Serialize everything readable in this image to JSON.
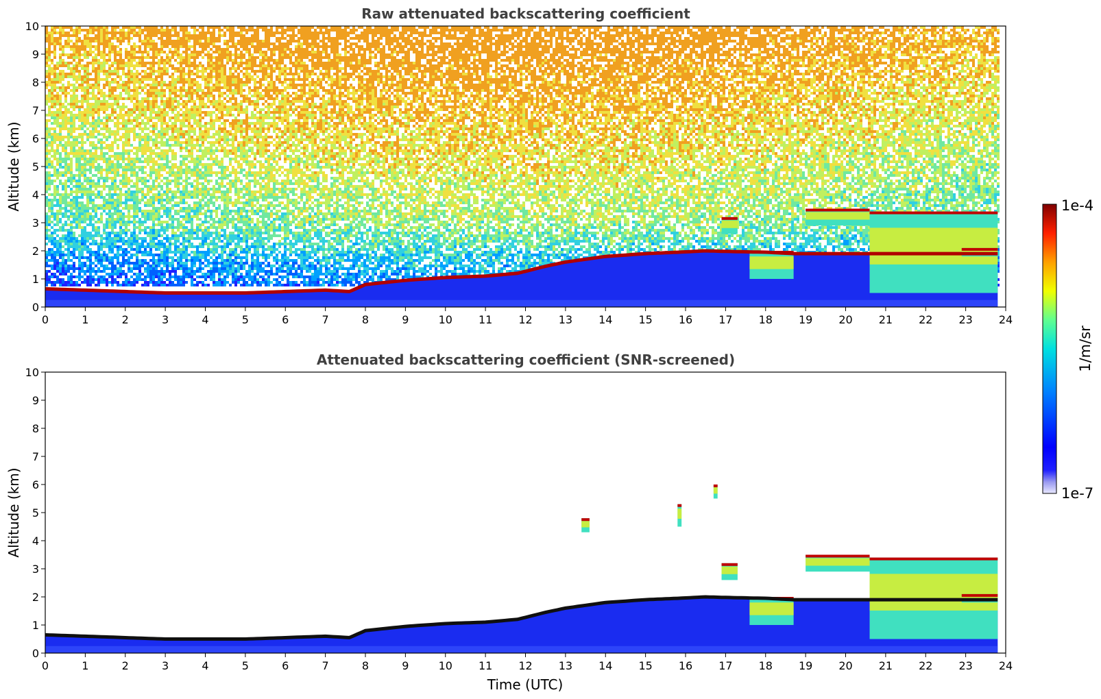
{
  "chart_data": [
    {
      "type": "heatmap",
      "title": "Raw attenuated backscattering coefficient",
      "xlabel": "",
      "ylabel": "Altitude (km)",
      "xlim": [
        0,
        24
      ],
      "ylim": [
        0,
        10
      ],
      "xticks": [
        "0",
        "1",
        "2",
        "3",
        "4",
        "5",
        "6",
        "7",
        "8",
        "9",
        "10",
        "11",
        "12",
        "13",
        "14",
        "15",
        "16",
        "17",
        "18",
        "19",
        "20",
        "21",
        "22",
        "23",
        "24"
      ],
      "yticks": [
        "0",
        "1",
        "2",
        "3",
        "4",
        "5",
        "6",
        "7",
        "8",
        "9",
        "10"
      ],
      "noise_background": true,
      "boundary_layer_top_km": {
        "t": [
          0,
          1,
          2,
          3,
          4,
          5,
          6,
          7,
          7.6,
          8,
          9,
          10,
          11,
          11.8,
          12.5,
          13,
          14,
          15,
          15.8,
          16.5,
          17,
          18,
          18.7
        ],
        "h": [
          0.65,
          0.6,
          0.55,
          0.5,
          0.5,
          0.5,
          0.55,
          0.6,
          0.55,
          0.8,
          0.95,
          1.05,
          1.1,
          1.2,
          1.45,
          1.6,
          1.8,
          1.9,
          1.95,
          2.0,
          1.98,
          1.95,
          1.9
        ]
      },
      "cloud_layers": [
        {
          "t0": 17.6,
          "t1": 18.7,
          "h0": 1.0,
          "h1": 2.0
        },
        {
          "t0": 16.9,
          "t1": 17.3,
          "h0": 2.6,
          "h1": 3.2
        },
        {
          "t0": 19.0,
          "t1": 20.6,
          "h0": 2.9,
          "h1": 3.5
        },
        {
          "t0": 20.6,
          "t1": 23.8,
          "h0": 0.5,
          "h1": 3.4
        },
        {
          "t0": 22.9,
          "t1": 23.8,
          "h0": 1.8,
          "h1": 2.1
        }
      ]
    },
    {
      "type": "heatmap",
      "title": "Attenuated backscattering coefficient (SNR-screened)",
      "xlabel": "Time (UTC)",
      "ylabel": "Altitude (km)",
      "xlim": [
        0,
        24
      ],
      "ylim": [
        0,
        10
      ],
      "xticks": [
        "0",
        "1",
        "2",
        "3",
        "4",
        "5",
        "6",
        "7",
        "8",
        "9",
        "10",
        "11",
        "12",
        "13",
        "14",
        "15",
        "16",
        "17",
        "18",
        "19",
        "20",
        "21",
        "22",
        "23",
        "24"
      ],
      "yticks": [
        "0",
        "1",
        "2",
        "3",
        "4",
        "5",
        "6",
        "7",
        "8",
        "9",
        "10"
      ],
      "noise_background": false,
      "boundary_layer_top_km": {
        "t": [
          0,
          1,
          2,
          3,
          4,
          5,
          6,
          7,
          7.6,
          8,
          9,
          10,
          11,
          11.8,
          12.5,
          13,
          14,
          15,
          15.8,
          16.5,
          17,
          18,
          18.7
        ],
        "h": [
          0.65,
          0.6,
          0.55,
          0.5,
          0.5,
          0.5,
          0.55,
          0.6,
          0.55,
          0.8,
          0.95,
          1.05,
          1.1,
          1.2,
          1.45,
          1.6,
          1.8,
          1.9,
          1.95,
          2.0,
          1.98,
          1.95,
          1.9
        ]
      },
      "cloud_layers": [
        {
          "t0": 17.6,
          "t1": 18.7,
          "h0": 1.0,
          "h1": 2.0
        },
        {
          "t0": 16.9,
          "t1": 17.3,
          "h0": 2.6,
          "h1": 3.2
        },
        {
          "t0": 19.0,
          "t1": 20.6,
          "h0": 2.9,
          "h1": 3.5
        },
        {
          "t0": 20.6,
          "t1": 23.8,
          "h0": 0.5,
          "h1": 3.4
        },
        {
          "t0": 22.9,
          "t1": 23.8,
          "h0": 1.8,
          "h1": 2.1
        },
        {
          "t0": 13.4,
          "t1": 13.6,
          "h0": 4.3,
          "h1": 4.8
        },
        {
          "t0": 15.8,
          "t1": 15.9,
          "h0": 4.5,
          "h1": 5.3
        },
        {
          "t0": 16.7,
          "t1": 16.8,
          "h0": 5.5,
          "h1": 6.0
        }
      ]
    }
  ],
  "colorbar": {
    "max_label": "1e-4",
    "min_label": "1e-7",
    "unit_label": "1/m/sr",
    "colormap": "jet",
    "log_scale": true
  }
}
